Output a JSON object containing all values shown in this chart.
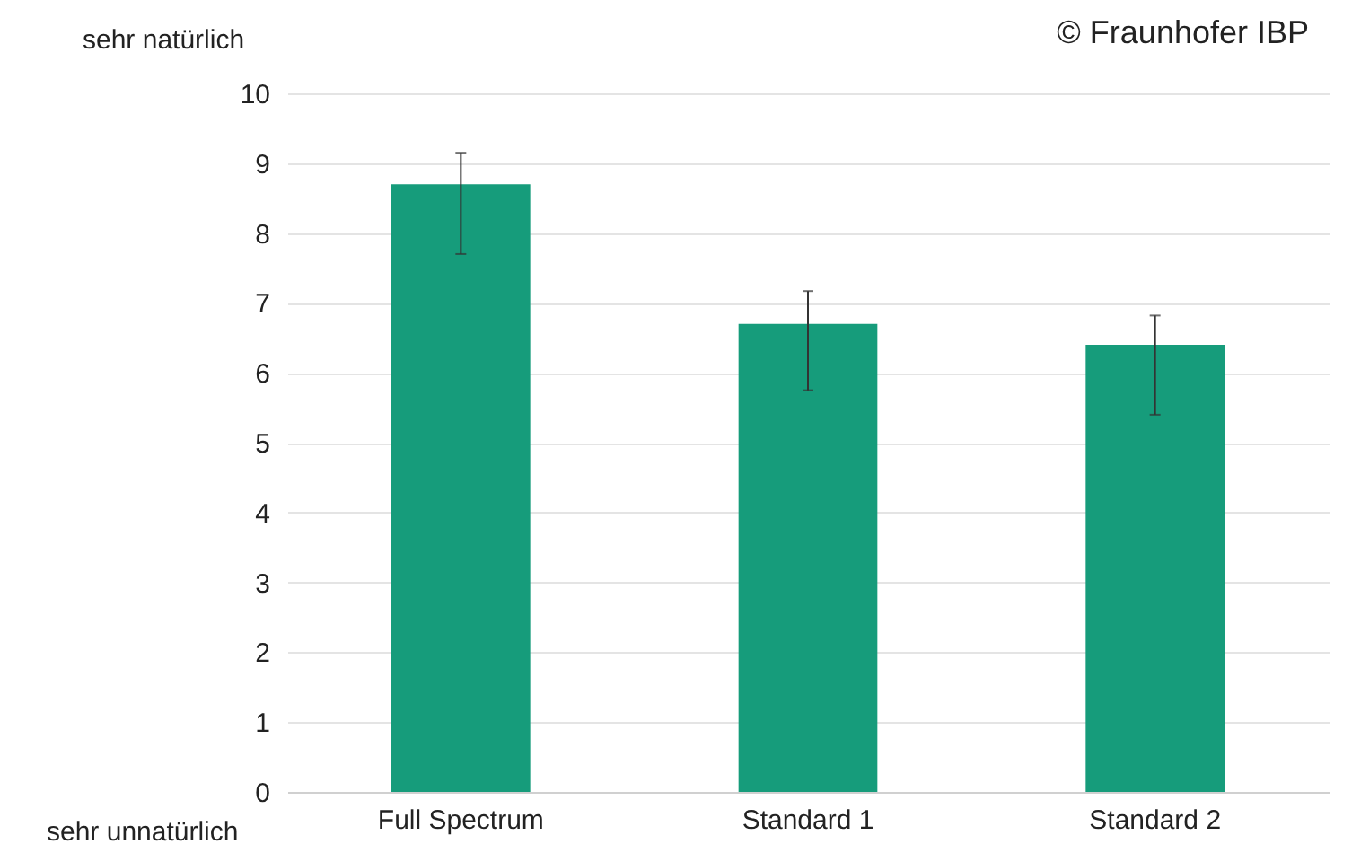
{
  "chart_data": {
    "type": "bar",
    "categories": [
      "Full Spectrum",
      "Standard 1",
      "Standard 2"
    ],
    "values": [
      8.7,
      6.7,
      6.4
    ],
    "errors": [
      [
        7.7,
        9.15
      ],
      [
        5.75,
        7.17
      ],
      [
        5.4,
        6.82
      ]
    ],
    "color": "#169c7b",
    "ylim": [
      0,
      10
    ],
    "yticks": [
      0,
      1,
      2,
      3,
      4,
      5,
      6,
      7,
      8,
      9,
      10
    ],
    "grid": "y",
    "annotations": [
      "sehr natürlich",
      "sehr unnatürlich",
      "© Fraunhofer IBP"
    ]
  }
}
